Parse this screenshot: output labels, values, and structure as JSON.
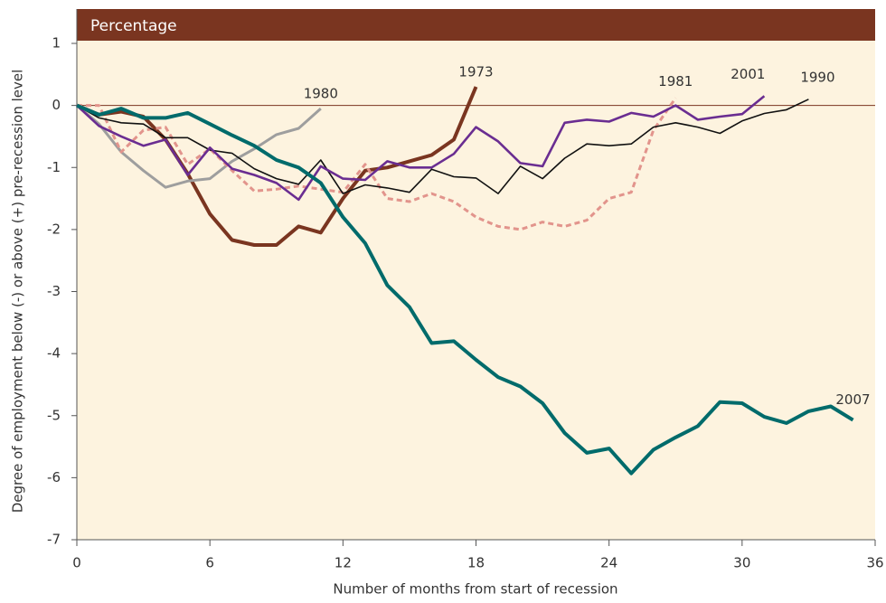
{
  "chart_data": {
    "type": "line",
    "panel_label": "Percentage",
    "x_label": "Number of months from start of recession",
    "y_label": "Degree of employment below (-) or above (+) pre-recession level",
    "xlim": [
      0,
      36
    ],
    "xticks": [
      0,
      6,
      12,
      18,
      24,
      30,
      36
    ],
    "ylim": [
      -7,
      1
    ],
    "yticks": [
      -7,
      -6,
      -5,
      -4,
      -3,
      -2,
      -1,
      0,
      1
    ],
    "series": [
      {
        "name": "1973",
        "color": "#7a3520",
        "width": 4,
        "dashed": false,
        "x": [
          0,
          1,
          2,
          3,
          4,
          5,
          6,
          7,
          8,
          9,
          10,
          11,
          12,
          13,
          14,
          15,
          16,
          17,
          18
        ],
        "values": [
          0,
          -0.15,
          -0.1,
          -0.18,
          -0.55,
          -1.1,
          -1.75,
          -2.17,
          -2.25,
          -2.25,
          -1.95,
          -2.05,
          -1.5,
          -1.05,
          -1.0,
          -0.9,
          -0.8,
          -0.55,
          0.3
        ]
      },
      {
        "name": "1980",
        "color": "#9e9e9e",
        "width": 3,
        "dashed": false,
        "x": [
          0,
          1,
          2,
          3,
          4,
          5,
          6,
          7,
          8,
          9,
          10,
          11
        ],
        "values": [
          0,
          -0.3,
          -0.75,
          -1.05,
          -1.32,
          -1.22,
          -1.18,
          -0.9,
          -0.7,
          -0.47,
          -0.37,
          -0.05
        ]
      },
      {
        "name": "1981",
        "color": "#e2948c",
        "width": 3,
        "dashed": true,
        "x": [
          0,
          1,
          2,
          3,
          4,
          5,
          6,
          7,
          8,
          9,
          10,
          11,
          12,
          13,
          14,
          15,
          16,
          17,
          18,
          19,
          20,
          21,
          22,
          23,
          24,
          25,
          26,
          27
        ],
        "values": [
          0,
          0,
          -0.75,
          -0.4,
          -0.35,
          -0.95,
          -0.7,
          -1.05,
          -1.38,
          -1.35,
          -1.3,
          -1.35,
          -1.4,
          -0.95,
          -1.5,
          -1.55,
          -1.42,
          -1.55,
          -1.8,
          -1.95,
          -2.0,
          -1.88,
          -1.95,
          -1.85,
          -1.5,
          -1.4,
          -0.4,
          0.12
        ]
      },
      {
        "name": "1990",
        "color": "#111111",
        "width": 1.6,
        "dashed": false,
        "x": [
          0,
          1,
          2,
          3,
          4,
          5,
          6,
          7,
          8,
          9,
          10,
          11,
          12,
          13,
          14,
          15,
          16,
          17,
          18,
          19,
          20,
          21,
          22,
          23,
          24,
          25,
          26,
          27,
          28,
          29,
          30,
          31,
          32,
          33
        ],
        "values": [
          0,
          -0.2,
          -0.28,
          -0.3,
          -0.52,
          -0.52,
          -0.72,
          -0.77,
          -1.02,
          -1.18,
          -1.27,
          -0.88,
          -1.42,
          -1.28,
          -1.33,
          -1.4,
          -1.03,
          -1.15,
          -1.17,
          -1.42,
          -0.98,
          -1.18,
          -0.85,
          -0.62,
          -0.65,
          -0.62,
          -0.35,
          -0.28,
          -0.35,
          -0.45,
          -0.25,
          -0.13,
          -0.07,
          0.1
        ]
      },
      {
        "name": "2001",
        "color": "#6a2d91",
        "width": 2.6,
        "dashed": false,
        "x": [
          0,
          1,
          2,
          3,
          4,
          5,
          6,
          7,
          8,
          9,
          10,
          11,
          12,
          13,
          14,
          15,
          16,
          17,
          18,
          19,
          20,
          21,
          22,
          23,
          24,
          25,
          26,
          27,
          28,
          29,
          30,
          31
        ],
        "values": [
          0,
          -0.33,
          -0.5,
          -0.65,
          -0.55,
          -1.12,
          -0.68,
          -1.02,
          -1.12,
          -1.25,
          -1.52,
          -0.98,
          -1.18,
          -1.2,
          -0.9,
          -1.0,
          -1.0,
          -0.78,
          -0.35,
          -0.58,
          -0.93,
          -0.98,
          -0.28,
          -0.23,
          -0.26,
          -0.12,
          -0.18,
          0.0,
          -0.23,
          -0.18,
          -0.14,
          0.15
        ]
      },
      {
        "name": "2007",
        "color": "#006b6b",
        "width": 4,
        "dashed": false,
        "x": [
          0,
          1,
          2,
          3,
          4,
          5,
          6,
          7,
          8,
          9,
          10,
          11,
          12,
          13,
          14,
          15,
          16,
          17,
          18,
          19,
          20,
          21,
          22,
          23,
          24,
          25,
          26,
          27,
          28,
          29,
          30,
          31,
          32,
          33,
          34,
          35
        ],
        "values": [
          0,
          -0.15,
          -0.05,
          -0.2,
          -0.2,
          -0.12,
          -0.3,
          -0.48,
          -0.65,
          -0.88,
          -1.0,
          -1.25,
          -1.8,
          -2.22,
          -2.9,
          -3.25,
          -3.83,
          -3.8,
          -4.1,
          -4.38,
          -4.53,
          -4.8,
          -5.28,
          -5.6,
          -5.53,
          -5.93,
          -5.55,
          -5.35,
          -5.17,
          -4.78,
          -4.8,
          -5.02,
          -5.12,
          -4.93,
          -4.85,
          -5.07
        ]
      }
    ]
  }
}
